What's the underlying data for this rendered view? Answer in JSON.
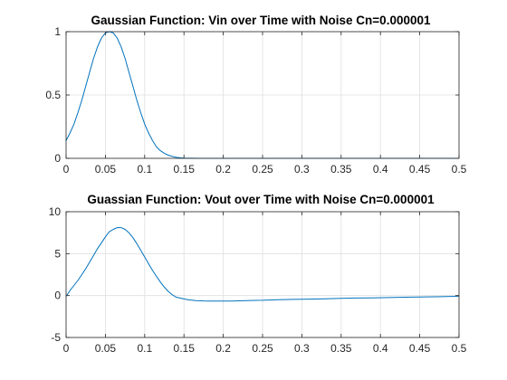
{
  "chart_data": [
    {
      "type": "line",
      "title": "Gaussian Function: Vin over Time with Noise Cn=0.000001",
      "xlabel": "",
      "ylabel": "",
      "xlim": [
        0,
        0.5
      ],
      "ylim": [
        0,
        1
      ],
      "xticks": [
        0,
        0.05,
        0.1,
        0.15,
        0.2,
        0.25,
        0.3,
        0.35,
        0.4,
        0.45,
        0.5
      ],
      "xtick_labels": [
        "0",
        "0.05",
        "0.1",
        "0.15",
        "0.2",
        "0.25",
        "0.3",
        "0.35",
        "0.4",
        "0.45",
        "0.5"
      ],
      "yticks": [
        0,
        0.5,
        1
      ],
      "ytick_labels": [
        "0",
        "0.5",
        "1"
      ],
      "grid": true,
      "legend": "none",
      "series": [
        {
          "color": "#0072BD",
          "x": [
            0,
            0.005,
            0.01,
            0.015,
            0.02,
            0.025,
            0.03,
            0.035,
            0.04,
            0.045,
            0.05,
            0.055,
            0.06,
            0.065,
            0.07,
            0.075,
            0.08,
            0.085,
            0.09,
            0.095,
            0.1,
            0.105,
            0.11,
            0.115,
            0.12,
            0.125,
            0.13,
            0.135,
            0.14,
            0.145,
            0.15,
            0.155,
            0.16,
            0.17,
            0.18,
            0.2,
            0.25,
            0.3,
            0.35,
            0.4,
            0.45,
            0.5
          ],
          "y": [
            0.14,
            0.2,
            0.27,
            0.36,
            0.46,
            0.57,
            0.68,
            0.79,
            0.88,
            0.95,
            0.99,
            1.0,
            0.99,
            0.95,
            0.88,
            0.79,
            0.68,
            0.57,
            0.46,
            0.36,
            0.27,
            0.2,
            0.14,
            0.09,
            0.06,
            0.04,
            0.025,
            0.015,
            0.008,
            0.004,
            0.002,
            0.001,
            0.0005,
            0,
            0,
            0,
            0,
            0,
            0,
            0,
            0,
            0
          ]
        }
      ]
    },
    {
      "type": "line",
      "title": "Guassian Function: Vout over Time with Noise Cn=0.000001",
      "xlabel": "",
      "ylabel": "",
      "xlim": [
        0,
        0.5
      ],
      "ylim": [
        -5,
        10
      ],
      "xticks": [
        0,
        0.05,
        0.1,
        0.15,
        0.2,
        0.25,
        0.3,
        0.35,
        0.4,
        0.45,
        0.5
      ],
      "xtick_labels": [
        "0",
        "0.05",
        "0.1",
        "0.15",
        "0.2",
        "0.25",
        "0.3",
        "0.35",
        "0.4",
        "0.45",
        "0.5"
      ],
      "yticks": [
        -5,
        0,
        5,
        10
      ],
      "ytick_labels": [
        "-5",
        "0",
        "5",
        "10"
      ],
      "grid": true,
      "legend": "none",
      "series": [
        {
          "color": "#0072BD",
          "x": [
            0,
            0.005,
            0.01,
            0.015,
            0.02,
            0.025,
            0.03,
            0.035,
            0.04,
            0.045,
            0.05,
            0.055,
            0.06,
            0.065,
            0.07,
            0.075,
            0.08,
            0.085,
            0.09,
            0.095,
            0.1,
            0.105,
            0.11,
            0.115,
            0.12,
            0.125,
            0.13,
            0.135,
            0.14,
            0.145,
            0.15,
            0.155,
            0.16,
            0.165,
            0.17,
            0.175,
            0.18,
            0.185,
            0.19,
            0.195,
            0.2,
            0.21,
            0.22,
            0.23,
            0.24,
            0.25,
            0.27,
            0.29,
            0.31,
            0.33,
            0.35,
            0.37,
            0.39,
            0.41,
            0.43,
            0.45,
            0.47,
            0.49,
            0.5
          ],
          "y": [
            -0.1,
            0.6,
            1.2,
            1.8,
            2.5,
            3.2,
            4.0,
            4.8,
            5.6,
            6.3,
            7.0,
            7.6,
            7.9,
            8.1,
            8.1,
            7.9,
            7.5,
            6.9,
            6.2,
            5.4,
            4.6,
            3.8,
            3.0,
            2.3,
            1.6,
            1.0,
            0.5,
            0.1,
            -0.2,
            -0.3,
            -0.4,
            -0.5,
            -0.55,
            -0.6,
            -0.62,
            -0.64,
            -0.65,
            -0.65,
            -0.66,
            -0.66,
            -0.66,
            -0.65,
            -0.63,
            -0.6,
            -0.58,
            -0.56,
            -0.5,
            -0.46,
            -0.42,
            -0.38,
            -0.33,
            -0.3,
            -0.27,
            -0.24,
            -0.2,
            -0.17,
            -0.14,
            -0.1,
            -0.08
          ]
        }
      ]
    }
  ]
}
